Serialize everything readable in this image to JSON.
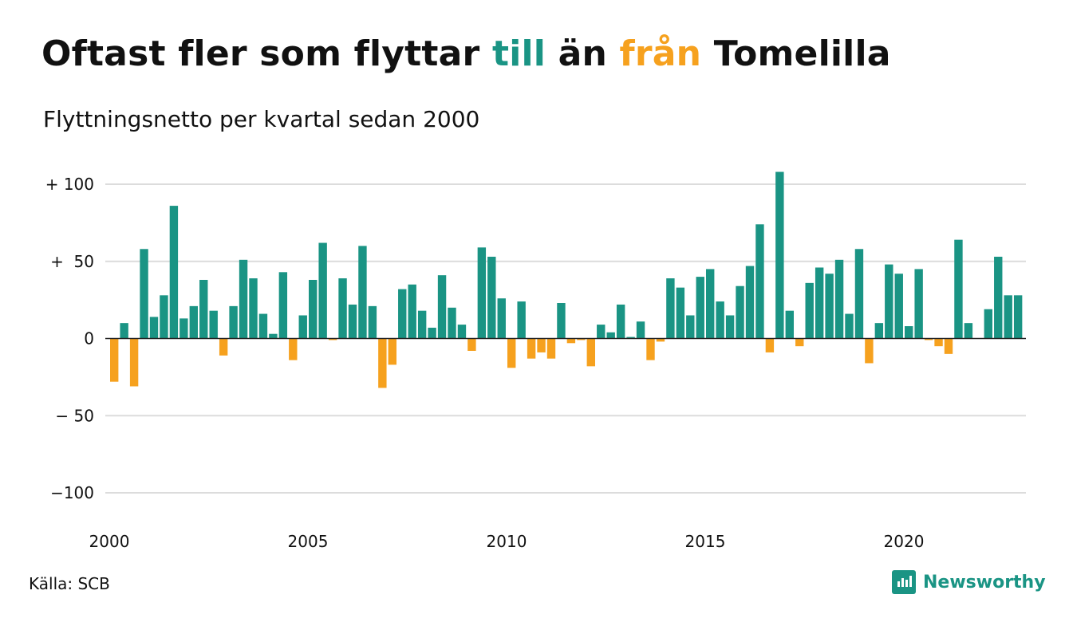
{
  "title": {
    "before": "Oftast fler som flyttar ",
    "to_word": "till",
    "middle": " än ",
    "from_word": "från",
    "after": " Tomelilla"
  },
  "subtitle": "Flyttningsnetto per kvartal sedan 2000",
  "source": "Källa: SCB",
  "brand": {
    "name": "Newsworthy",
    "icon": "newsworthy-logo-icon"
  },
  "colors": {
    "positive": "#1a9484",
    "negative": "#f6a11e",
    "grid": "#dcdcdc",
    "zero_line": "#222222"
  },
  "chart_data": {
    "type": "bar",
    "xlabel": "",
    "ylabel": "",
    "ylim": [
      -100,
      110
    ],
    "grid": true,
    "y_ticks": [
      {
        "value": 100,
        "label": "+ 100"
      },
      {
        "value": 50,
        "label": "+  50"
      },
      {
        "value": 0,
        "label": "0"
      },
      {
        "value": -50,
        "label": "− 50"
      },
      {
        "value": -100,
        "label": "−100"
      }
    ],
    "x_ticks": [
      "2000",
      "2005",
      "2010",
      "2015",
      "2020"
    ],
    "start_year": 2000,
    "values": [
      -28,
      10,
      -31,
      58,
      14,
      28,
      86,
      13,
      21,
      38,
      18,
      -11,
      21,
      51,
      39,
      16,
      3,
      43,
      -14,
      15,
      38,
      62,
      -1,
      39,
      22,
      60,
      21,
      -32,
      -17,
      32,
      35,
      18,
      7,
      41,
      20,
      9,
      -8,
      59,
      53,
      26,
      -19,
      24,
      -13,
      -9,
      -13,
      23,
      -3,
      -1,
      -18,
      9,
      4,
      22,
      1,
      11,
      -14,
      -2,
      39,
      33,
      15,
      40,
      45,
      24,
      15,
      34,
      47,
      74,
      -9,
      108,
      18,
      -5,
      36,
      46,
      42,
      51,
      16,
      58,
      -16,
      10,
      48,
      42,
      8,
      45,
      -1,
      -5,
      -10,
      64,
      10,
      0,
      19,
      53,
      28,
      28
    ]
  }
}
